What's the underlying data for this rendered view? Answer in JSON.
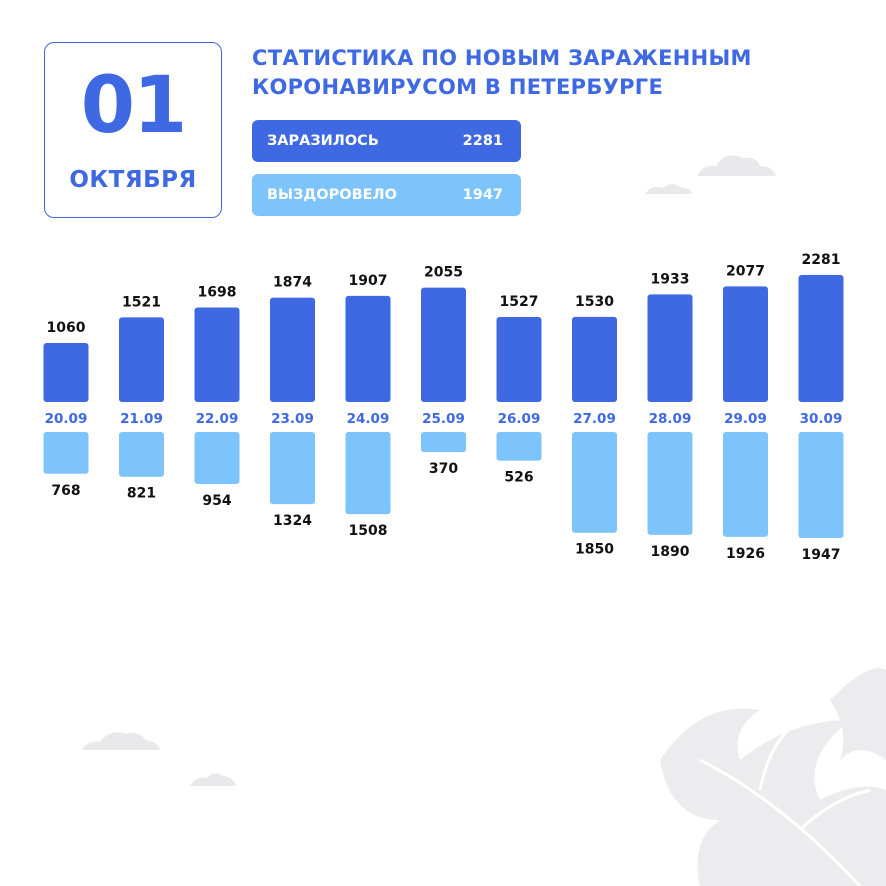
{
  "header": {
    "date_day": "01",
    "date_month": "ОКТЯБРЯ",
    "title_line1": "СТАТИСТИКА ПО НОВЫМ ЗАРАЖЕННЫМ",
    "title_line2": "КОРОНАВИРУСОМ В ПЕТЕРБУРГЕ"
  },
  "legend": {
    "infected_label": "ЗАРАЗИЛОСЬ",
    "infected_value": "2281",
    "recovered_label": "ВЫЗДОРОВЕЛО",
    "recovered_value": "1947"
  },
  "colors": {
    "infected": "#3e69e2",
    "recovered": "#7cc4fb",
    "date_label": "#3e69e2",
    "value_label": "#111111",
    "decor": "#e6e6e8"
  },
  "chart_data": {
    "type": "bar",
    "categories": [
      "20.09",
      "21.09",
      "22.09",
      "23.09",
      "24.09",
      "25.09",
      "26.09",
      "27.09",
      "28.09",
      "29.09",
      "30.09"
    ],
    "series": [
      {
        "name": "ЗАРАЗИЛОСЬ",
        "values": [
          1060,
          1521,
          1698,
          1874,
          1907,
          2055,
          1527,
          1530,
          1933,
          2077,
          2281
        ]
      },
      {
        "name": "ВЫЗДОРОВЕЛО",
        "values": [
          768,
          821,
          954,
          1324,
          1508,
          370,
          526,
          1850,
          1890,
          1926,
          1947
        ]
      }
    ],
    "layout": "mirrored",
    "grid": false,
    "legend": "top"
  }
}
